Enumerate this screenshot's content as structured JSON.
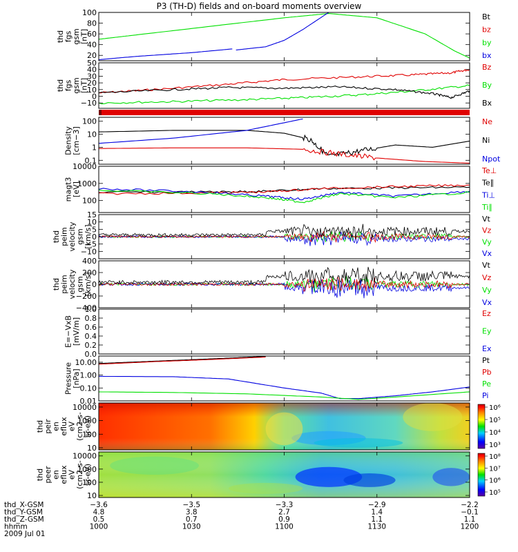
{
  "title": "P3 (TH-D) fields and on-board moments overview",
  "colors": {
    "black": "#000000",
    "red": "#e00000",
    "green": "#00e000",
    "blue": "#0000e0"
  },
  "chart_data": [
    {
      "type": "line",
      "panel": "fgs_gsm_mag",
      "ylabel": [
        "thd",
        "fgs",
        "gsm",
        "[nT]"
      ],
      "ylim": [
        10,
        100
      ],
      "yticks": [
        "20",
        "40",
        "60",
        "80",
        "100"
      ],
      "legend": [
        {
          "label": "Bt",
          "color": "black"
        },
        {
          "label": "bz",
          "color": "red"
        },
        {
          "label": "by",
          "color": "green"
        },
        {
          "label": "bx",
          "color": "blue"
        }
      ],
      "series": [
        {
          "color": "green",
          "x": [
            0,
            0.1,
            0.3,
            0.5,
            0.62,
            0.75,
            0.88,
            0.96,
            1.0
          ],
          "y": [
            50,
            58,
            74,
            90,
            98,
            90,
            60,
            28,
            15
          ]
        },
        {
          "color": "blue",
          "x": [
            0,
            0.1,
            0.25,
            0.36
          ],
          "y": [
            12,
            18,
            25,
            32
          ]
        },
        {
          "color": "blue",
          "x": [
            0.37,
            0.45,
            0.5,
            0.55,
            0.62
          ],
          "y": [
            30,
            36,
            48,
            68,
            100
          ]
        }
      ]
    },
    {
      "type": "line",
      "panel": "fgs_gsm_components",
      "ylabel": [
        "thd",
        "fgs",
        "gsm",
        "[nT]"
      ],
      "ylim": [
        -18,
        50
      ],
      "yticks": [
        "−10",
        "0",
        "10",
        "20",
        "30",
        "40",
        "50"
      ],
      "legend": [
        {
          "label": "Bz",
          "color": "red"
        },
        {
          "label": "By",
          "color": "green"
        },
        {
          "label": "Bx",
          "color": "black"
        }
      ],
      "series": [
        {
          "color": "red",
          "x": [
            0,
            0.15,
            0.35,
            0.5,
            0.7,
            0.85,
            0.95,
            1.0
          ],
          "y": [
            5,
            10,
            18,
            25,
            29,
            32,
            35,
            40
          ]
        },
        {
          "color": "green",
          "x": [
            0,
            0.2,
            0.4,
            0.55,
            0.7,
            0.85,
            1.0
          ],
          "y": [
            -10,
            -8,
            -5,
            -2,
            2,
            8,
            16
          ]
        },
        {
          "color": "black",
          "x": [
            0,
            0.2,
            0.35,
            0.5,
            0.65,
            0.8,
            0.9,
            0.95,
            1.0
          ],
          "y": [
            5,
            10,
            13,
            12,
            14,
            10,
            4,
            -2,
            8
          ]
        }
      ]
    },
    {
      "type": "bar",
      "panel": "mode_bar",
      "color": "red"
    },
    {
      "type": "line",
      "panel": "density",
      "ylabel": [
        "Density",
        "[cm−3]"
      ],
      "yscale": "log",
      "ylim": [
        0.05,
        200
      ],
      "yticks": [
        "0.1",
        "1",
        "10",
        "100"
      ],
      "legend": [
        {
          "label": "Ne",
          "color": "red"
        },
        {
          "label": "Ni",
          "color": "black"
        },
        {
          "label": "Npot",
          "color": "blue"
        }
      ],
      "series": [
        {
          "color": "black",
          "x": [
            0,
            0.2,
            0.4,
            0.5,
            0.57,
            0.62,
            0.7,
            0.8,
            0.9,
            1.0
          ],
          "y": [
            15,
            20,
            20,
            12,
            4,
            0.2,
            0.5,
            1.5,
            1,
            3
          ]
        },
        {
          "color": "red",
          "x": [
            0,
            0.2,
            0.4,
            0.55,
            0.65,
            0.75,
            0.88,
            1.0
          ],
          "y": [
            0.8,
            0.9,
            0.9,
            0.7,
            0.3,
            0.15,
            0.08,
            0.06
          ]
        },
        {
          "color": "blue",
          "x": [
            0,
            0.2,
            0.4,
            0.55
          ],
          "y": [
            2,
            5,
            20,
            150
          ]
        }
      ]
    },
    {
      "type": "line",
      "panel": "temperature",
      "ylabel": [
        "magt3",
        "[eV]"
      ],
      "yscale": "log",
      "ylim": [
        20,
        10000
      ],
      "yticks": [
        "100",
        "1000",
        "10000"
      ],
      "legend": [
        {
          "label": "Te⊥",
          "color": "red"
        },
        {
          "label": "Te∥",
          "color": "black"
        },
        {
          "label": "Ti⊥",
          "color": "blue"
        },
        {
          "label": "Ti∥",
          "color": "green"
        }
      ],
      "series": [
        {
          "color": "black",
          "x": [
            0,
            0.3,
            0.45,
            0.6,
            0.8,
            1.0
          ],
          "y": [
            300,
            320,
            350,
            500,
            550,
            600
          ]
        },
        {
          "color": "red",
          "x": [
            0,
            0.3,
            0.45,
            0.6,
            0.8,
            1.0
          ],
          "y": [
            250,
            280,
            320,
            500,
            650,
            800
          ]
        },
        {
          "color": "blue",
          "x": [
            0,
            0.3,
            0.45,
            0.55,
            0.65,
            0.8,
            1.0
          ],
          "y": [
            500,
            300,
            180,
            120,
            300,
            180,
            350
          ]
        },
        {
          "color": "green",
          "x": [
            0,
            0.3,
            0.45,
            0.55,
            0.65,
            0.8,
            1.0
          ],
          "y": [
            400,
            250,
            150,
            80,
            250,
            150,
            300
          ]
        }
      ]
    },
    {
      "type": "line",
      "panel": "peim_velocity_a",
      "ylabel": [
        "thd",
        "peim",
        "velocity",
        "gsm",
        "[km/s]"
      ],
      "ylim": [
        -15,
        15
      ],
      "yticks": [
        "−10",
        "−5",
        "0",
        "5",
        "10",
        "15"
      ],
      "legend": [
        {
          "label": "Vt",
          "color": "black"
        },
        {
          "label": "Vz",
          "color": "red"
        },
        {
          "label": "Vy",
          "color": "green"
        },
        {
          "label": "Vx",
          "color": "blue"
        }
      ]
    },
    {
      "type": "line",
      "panel": "peim_velocity_b",
      "ylabel": [
        "thd",
        "peim",
        "velocity",
        "gsm",
        "[km/s]"
      ],
      "ylim": [
        -400,
        400
      ],
      "yticks": [
        "−400",
        "−200",
        "0",
        "200",
        "400"
      ],
      "legend": [
        {
          "label": "Vt",
          "color": "black"
        },
        {
          "label": "Vz",
          "color": "red"
        },
        {
          "label": "Vy",
          "color": "green"
        },
        {
          "label": "Vx",
          "color": "blue"
        }
      ]
    },
    {
      "type": "line",
      "panel": "efield",
      "ylabel": [
        "E=−VxB",
        "[mV/m]"
      ],
      "ylim": [
        0,
        1
      ],
      "yticks": [
        "0.0",
        "0.2",
        "0.4",
        "0.6",
        "0.8",
        "1.0"
      ],
      "legend": [
        {
          "label": "Ez",
          "color": "red"
        },
        {
          "label": "Ey",
          "color": "green"
        },
        {
          "label": "Ex",
          "color": "blue"
        }
      ]
    },
    {
      "type": "line",
      "panel": "pressure",
      "ylabel": [
        "Pressure",
        "[nPa]"
      ],
      "yscale": "log",
      "ylim": [
        0.01,
        30
      ],
      "yticks": [
        "0.01",
        "0.10",
        "1.00",
        "10.00"
      ],
      "legend": [
        {
          "label": "Pt",
          "color": "black"
        },
        {
          "label": "Pb",
          "color": "red"
        },
        {
          "label": "Pe",
          "color": "green"
        },
        {
          "label": "Pi",
          "color": "blue"
        }
      ],
      "series": [
        {
          "color": "black",
          "x": [
            0,
            0.15,
            0.3,
            0.45
          ],
          "y": [
            8,
            12,
            18,
            28
          ]
        },
        {
          "color": "red",
          "x": [
            0,
            0.15,
            0.3,
            0.45
          ],
          "y": [
            7,
            11,
            16,
            25
          ]
        },
        {
          "color": "blue",
          "x": [
            0,
            0.2,
            0.35,
            0.5,
            0.6,
            0.65,
            0.7,
            0.8,
            0.9,
            1.0
          ],
          "y": [
            0.8,
            0.75,
            0.5,
            0.1,
            0.04,
            0.015,
            0.015,
            0.025,
            0.05,
            0.12
          ]
        },
        {
          "color": "green",
          "x": [
            0,
            0.2,
            0.4,
            0.6,
            0.7,
            0.8,
            1.0
          ],
          "y": [
            0.05,
            0.045,
            0.035,
            0.02,
            0.013,
            0.02,
            0.05
          ]
        }
      ]
    },
    {
      "type": "heatmap",
      "panel": "peir_en_eflux",
      "ylabel": [
        "thd",
        "peir",
        "en",
        "eflux",
        "eV",
        "(cm2-s-",
        "sr-eV)"
      ],
      "yscale": "log",
      "ylim": [
        7,
        20000
      ],
      "yticks": [
        "10",
        "100",
        "1000",
        "10000"
      ],
      "colorbar": {
        "ticks": [
          "10³",
          "10⁴",
          "10⁵",
          "10⁶"
        ]
      }
    },
    {
      "type": "heatmap",
      "panel": "peer_en_eflux",
      "ylabel": [
        "thd",
        "peer",
        "en",
        "eflux",
        "eV",
        "(cm2-s-",
        "sr-eV)"
      ],
      "yscale": "log",
      "ylim": [
        7,
        20000
      ],
      "yticks": [
        "10",
        "100",
        "1000",
        "10000"
      ],
      "colorbar": {
        "ticks": [
          "10⁵",
          "10⁶",
          "10⁷",
          "10⁸"
        ]
      }
    }
  ],
  "xaxis": {
    "rows": [
      {
        "label": "thd_X-GSM",
        "values": [
          "−3.6",
          "−3.5",
          "−3.3",
          "−2.9",
          "−2.2"
        ]
      },
      {
        "label": "thd_Y-GSM",
        "values": [
          "4.8",
          "3.8",
          "2.7",
          "1.4",
          "−0.1"
        ]
      },
      {
        "label": "thd_Z-GSM",
        "values": [
          "0.5",
          "0.7",
          "0.9",
          "1.1",
          "1.1"
        ]
      },
      {
        "label": "hhmm",
        "values": [
          "1000",
          "1030",
          "1100",
          "1130",
          "1200"
        ]
      }
    ],
    "date": "2009 Jul 01"
  }
}
